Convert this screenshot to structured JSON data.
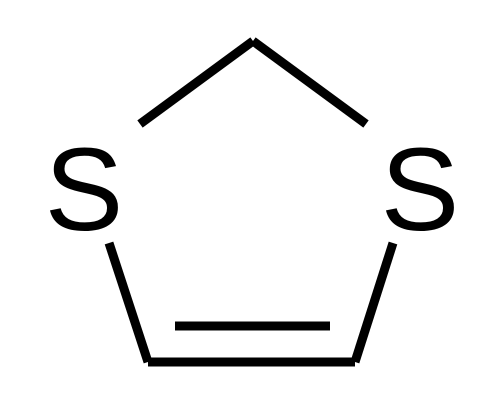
{
  "molecule": {
    "atoms": [
      {
        "id": "S1",
        "label": "S"
      },
      {
        "id": "S2",
        "label": "S"
      }
    ],
    "bond_color": "#000000",
    "background": "#ffffff"
  }
}
